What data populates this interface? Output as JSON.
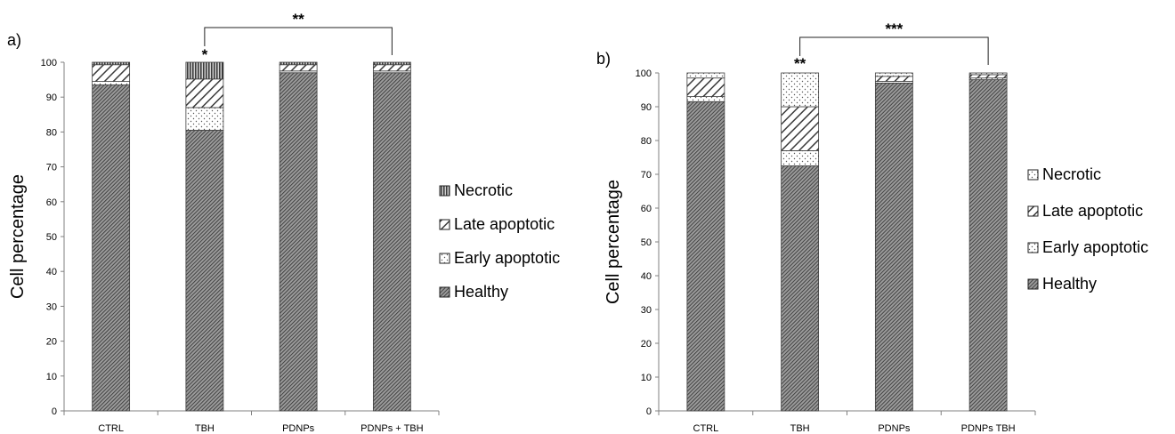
{
  "chart_data": [
    {
      "panel_label": "a)",
      "type": "bar",
      "stacked": true,
      "categories": [
        "CTRL",
        "TBH",
        "PDNPs",
        "PDNPs + TBH"
      ],
      "series": [
        {
          "name": "Healthy",
          "values": [
            93.5,
            80.5,
            97.0,
            97.0
          ]
        },
        {
          "name": "Early apoptotic",
          "values": [
            1.0,
            6.5,
            0.5,
            0.5
          ]
        },
        {
          "name": "Late apoptotic",
          "values": [
            4.8,
            8.2,
            1.8,
            1.8
          ]
        },
        {
          "name": "Necrotic",
          "values": [
            0.7,
            4.8,
            0.7,
            0.7
          ]
        }
      ],
      "legend_order": [
        "Necrotic",
        "Late apoptotic",
        "Early apoptotic",
        "Healthy"
      ],
      "legend_position": "right",
      "xlabel": "",
      "ylabel": "Cell percentage",
      "ylim": [
        0,
        100
      ],
      "yticks": [
        0,
        10,
        20,
        30,
        40,
        50,
        60,
        70,
        80,
        90,
        100
      ],
      "grid": false,
      "annotations": {
        "star_label": "*",
        "star_category": "TBH",
        "bracket_label": "**",
        "bracket_from": "TBH",
        "bracket_to": "PDNPs + TBH"
      }
    },
    {
      "panel_label": "b)",
      "type": "bar",
      "stacked": true,
      "categories": [
        "CTRL",
        "TBH",
        "PDNPs",
        "PDNPs TBH"
      ],
      "series": [
        {
          "name": "Healthy",
          "values": [
            91.5,
            72.5,
            97.0,
            98.0
          ]
        },
        {
          "name": "Early apoptotic",
          "values": [
            1.5,
            4.5,
            0.5,
            0.5
          ]
        },
        {
          "name": "Late apoptotic",
          "values": [
            5.5,
            13.0,
            1.5,
            1.0
          ]
        },
        {
          "name": "Necrotic",
          "values": [
            1.5,
            10.0,
            1.0,
            0.5
          ]
        }
      ],
      "legend_order": [
        "Necrotic",
        "Late apoptotic",
        "Early apoptotic",
        "Healthy"
      ],
      "legend_position": "right",
      "xlabel": "",
      "ylabel": "Cell percentage",
      "ylim": [
        0,
        100
      ],
      "yticks": [
        0,
        10,
        20,
        30,
        40,
        50,
        60,
        70,
        80,
        90,
        100
      ],
      "grid": false,
      "annotations": {
        "star_label": "**",
        "star_category": "TBH",
        "bracket_label": "***",
        "bracket_from": "TBH",
        "bracket_to": "PDNPs TBH"
      }
    }
  ],
  "colors": {
    "fill": "#5e5e5e",
    "axis": "#808080",
    "outline": "#404040",
    "light_fill": "#ffffff"
  },
  "patterns": {
    "a": {
      "Healthy": "diag-dense",
      "Early apoptotic": "dots",
      "Late apoptotic": "diag-wide",
      "Necrotic": "vert"
    },
    "b": {
      "Healthy": "diag-dense",
      "Early apoptotic": "dots",
      "Late apoptotic": "diag-wide",
      "Necrotic": "dots"
    }
  }
}
